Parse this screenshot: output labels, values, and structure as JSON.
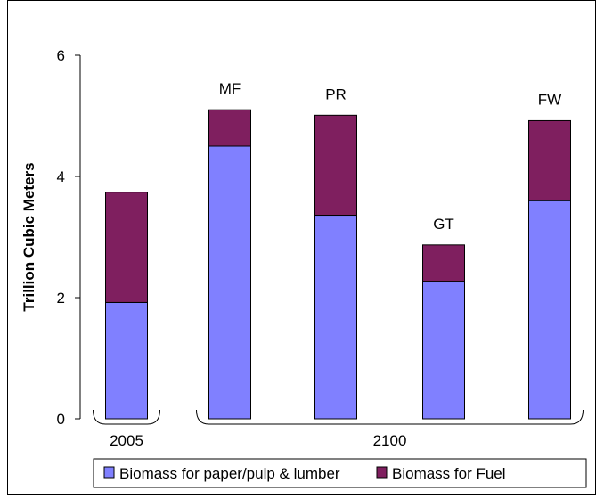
{
  "chart_data": {
    "type": "bar",
    "stacked": true,
    "ylabel": "Trillion Cubic Meters",
    "xlabel": "",
    "ylim": [
      0,
      6
    ],
    "yticks": [
      "0",
      "2",
      "4",
      "6"
    ],
    "grid": false,
    "legend_position": "bottom",
    "bars": [
      {
        "label": "",
        "group": "2005"
      },
      {
        "label": "MF",
        "group": "2100"
      },
      {
        "label": "PR",
        "group": "2100"
      },
      {
        "label": "GT",
        "group": "2100"
      },
      {
        "label": "FW",
        "group": "2100"
      }
    ],
    "groups": [
      {
        "label": "2005",
        "first": 0,
        "last": 0
      },
      {
        "label": "2100",
        "first": 1,
        "last": 4
      }
    ],
    "series": [
      {
        "name": "Biomass for paper/pulp & lumber",
        "color": "#8080ff",
        "values": [
          1.92,
          4.5,
          3.36,
          2.27,
          3.6
        ]
      },
      {
        "name": "Biomass for Fuel",
        "color": "#7f1f5f",
        "values": [
          1.82,
          0.6,
          1.65,
          0.6,
          1.32
        ]
      }
    ]
  }
}
